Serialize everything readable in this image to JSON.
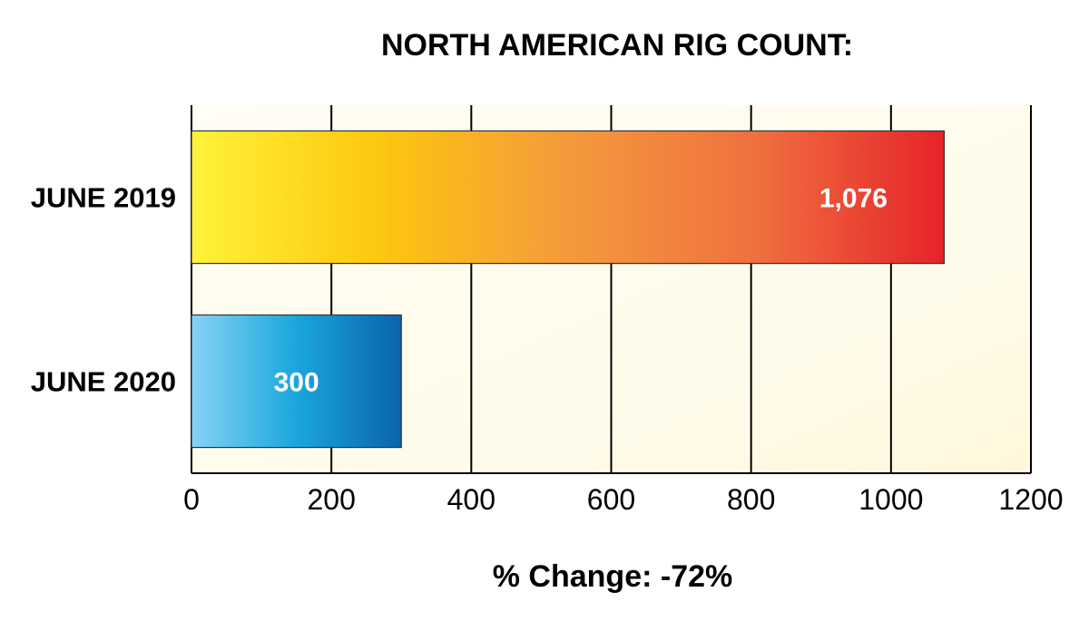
{
  "chart_data": {
    "type": "bar",
    "orientation": "horizontal",
    "title": "NORTH AMERICAN RIG COUNT:",
    "categories": [
      "JUNE 2019",
      "JUNE 2020"
    ],
    "values": [
      1076,
      300
    ],
    "data_labels": [
      "1,076",
      "300"
    ],
    "xlim": [
      0,
      1200
    ],
    "xticks": [
      0,
      200,
      400,
      600,
      800,
      1000,
      1200
    ],
    "xtick_labels": [
      "0",
      "200",
      "400",
      "600",
      "800",
      "1000",
      "1200"
    ],
    "grid": true,
    "legend": "none",
    "bar_gradients": [
      [
        "#fff23a",
        "#fdc70f",
        "#f49a3c",
        "#f0703f",
        "#e5232a"
      ],
      [
        "#86d3f5",
        "#1aa6dd",
        "#0a63ad"
      ]
    ],
    "plot_background": "#fffdf0",
    "footer": "% Change:  -72%"
  }
}
